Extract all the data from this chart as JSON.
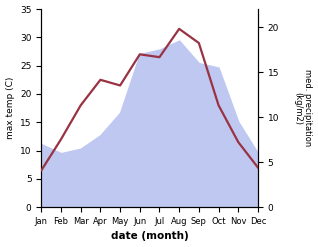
{
  "months": [
    "Jan",
    "Feb",
    "Mar",
    "Apr",
    "May",
    "Jun",
    "Jul",
    "Aug",
    "Sep",
    "Oct",
    "Nov",
    "Dec"
  ],
  "temp_max": [
    6.5,
    12.0,
    18.0,
    22.5,
    21.5,
    27.0,
    26.5,
    31.5,
    29.0,
    18.0,
    11.5,
    7.0
  ],
  "precipitation": [
    7.0,
    6.0,
    6.5,
    8.0,
    10.5,
    17.0,
    17.5,
    18.5,
    16.0,
    15.5,
    9.5,
    6.0
  ],
  "temp_ylim": [
    0,
    35
  ],
  "precip_ylim": [
    0,
    22
  ],
  "temp_color": "#993344",
  "precip_fill_color": "#bfc8f0",
  "xlabel": "date (month)",
  "ylabel_left": "max temp (C)",
  "ylabel_right": "med. precipitation\n(kg/m2)",
  "temp_yticks": [
    0,
    5,
    10,
    15,
    20,
    25,
    30,
    35
  ],
  "precip_yticks": [
    0,
    5,
    10,
    15,
    20
  ],
  "line_width": 1.6
}
